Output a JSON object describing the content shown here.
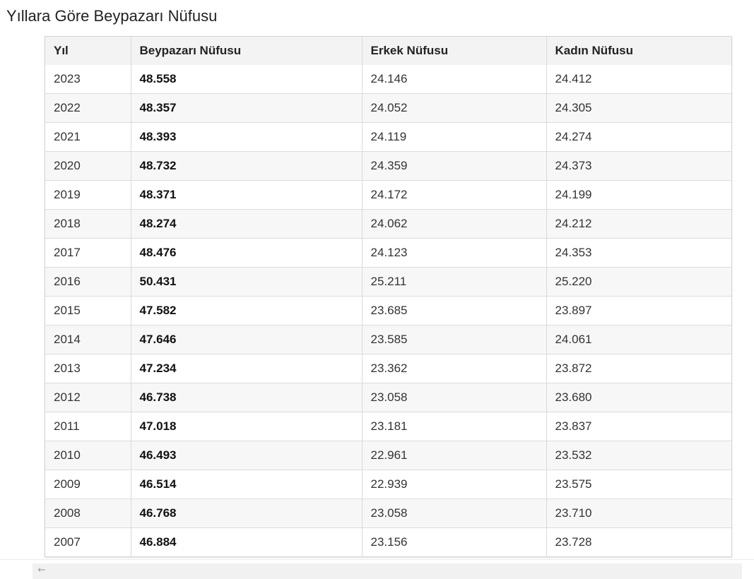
{
  "title": "Yıllara Göre Beypazarı Nüfusu",
  "table": {
    "headers": [
      "Yıl",
      "Beypazarı Nüfusu",
      "Erkek Nüfusu",
      "Kadın Nüfusu"
    ],
    "rows": [
      {
        "year": "2023",
        "total": "48.558",
        "male": "24.146",
        "female": "24.412"
      },
      {
        "year": "2022",
        "total": "48.357",
        "male": "24.052",
        "female": "24.305"
      },
      {
        "year": "2021",
        "total": "48.393",
        "male": "24.119",
        "female": "24.274"
      },
      {
        "year": "2020",
        "total": "48.732",
        "male": "24.359",
        "female": "24.373"
      },
      {
        "year": "2019",
        "total": "48.371",
        "male": "24.172",
        "female": "24.199"
      },
      {
        "year": "2018",
        "total": "48.274",
        "male": "24.062",
        "female": "24.212"
      },
      {
        "year": "2017",
        "total": "48.476",
        "male": "24.123",
        "female": "24.353"
      },
      {
        "year": "2016",
        "total": "50.431",
        "male": "25.211",
        "female": "25.220"
      },
      {
        "year": "2015",
        "total": "47.582",
        "male": "23.685",
        "female": "23.897"
      },
      {
        "year": "2014",
        "total": "47.646",
        "male": "23.585",
        "female": "24.061"
      },
      {
        "year": "2013",
        "total": "47.234",
        "male": "23.362",
        "female": "23.872"
      },
      {
        "year": "2012",
        "total": "46.738",
        "male": "23.058",
        "female": "23.680"
      },
      {
        "year": "2011",
        "total": "47.018",
        "male": "23.181",
        "female": "23.837"
      },
      {
        "year": "2010",
        "total": "46.493",
        "male": "22.961",
        "female": "23.532"
      },
      {
        "year": "2009",
        "total": "46.514",
        "male": "22.939",
        "female": "23.575"
      },
      {
        "year": "2008",
        "total": "46.768",
        "male": "23.058",
        "female": "23.710"
      },
      {
        "year": "2007",
        "total": "46.884",
        "male": "23.156",
        "female": "23.728"
      }
    ]
  },
  "scrollbar": {
    "left_arrow_icon": "arrow-left-icon",
    "left_arrow_glyph": "←"
  }
}
